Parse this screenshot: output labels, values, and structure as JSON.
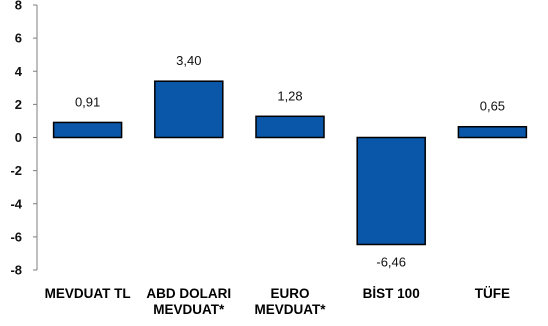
{
  "chart_data": {
    "type": "bar",
    "categories": [
      [
        "MEVDUAT TL"
      ],
      [
        "ABD DOLARI",
        "MEVDUAT*"
      ],
      [
        "EURO",
        "MEVDUAT*"
      ],
      [
        "BİST 100"
      ],
      [
        "TÜFE"
      ]
    ],
    "values": [
      0.91,
      3.4,
      1.28,
      -6.46,
      0.65
    ],
    "value_labels": [
      "0,91",
      "3,40",
      "1,28",
      "-6,46",
      "0,65"
    ],
    "ylim": [
      -8,
      8
    ],
    "yticks": [
      8,
      6,
      4,
      2,
      0,
      -2,
      -4,
      -6,
      -8
    ],
    "title": "",
    "xlabel": "",
    "ylabel": "",
    "grid": false,
    "colors": {
      "bar_fill": "#0a56a8",
      "bar_stroke": "#000000",
      "axis": "#7f7f7f"
    }
  }
}
